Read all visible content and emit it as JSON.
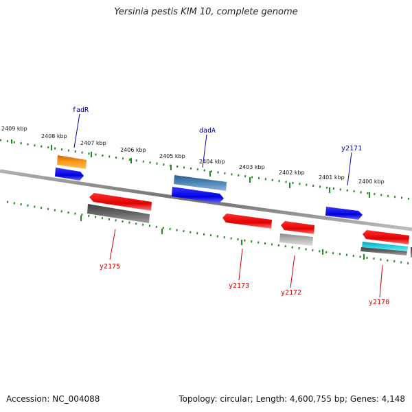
{
  "title": "Yersinia pestis KIM 10, complete genome",
  "accession_label": "Accession: NC_004088",
  "topology_label": "Topology: circular; Length: 4,600,755 bp; Genes: 4,148",
  "colors": {
    "backbone": "#8a8a8a",
    "tick": "#1f8a1f",
    "forward_label": "#00008b",
    "reverse_label": "#cc0000"
  },
  "kbp_labels": [
    "2409 kbp",
    "2408 kbp",
    "2407 kbp",
    "2406 kbp",
    "2405 kbp",
    "2404 kbp",
    "2403 kbp",
    "2402 kbp",
    "2401 kbp",
    "2400 kbp"
  ],
  "forward_gene_labels": [
    "fadR",
    "dadA",
    "y2171"
  ],
  "reverse_gene_labels": [
    "y2175",
    "y2173",
    "y2172",
    "y2170"
  ]
}
